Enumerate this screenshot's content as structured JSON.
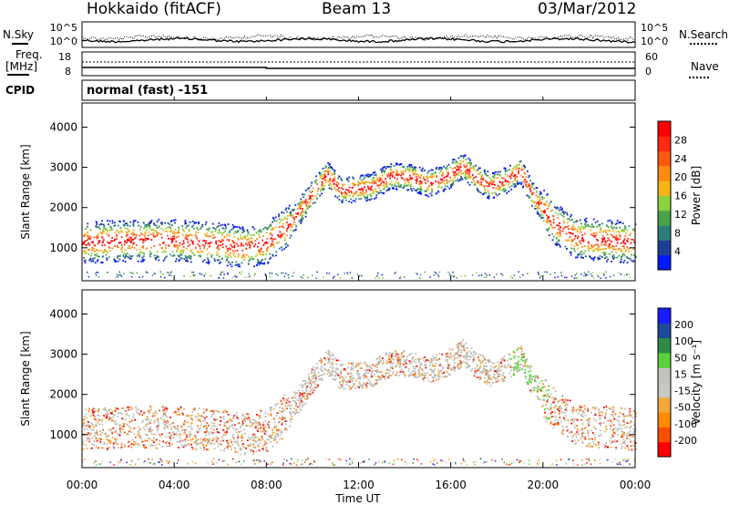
{
  "header": {
    "title_left": "Hokkaido (fitACF)",
    "title_center": "Beam 13",
    "title_right": "03/Mar/2012"
  },
  "panels": {
    "nsky": {
      "left_label": "N.Sky",
      "right_label": "N.Search",
      "left_ticks": [
        "10^5",
        "10^0"
      ],
      "right_ticks": [
        "10^5",
        "10^0"
      ]
    },
    "freq": {
      "left_label_1": "Freq.",
      "left_label_2": "[MHz]",
      "right_label": "Nave",
      "left_ticks": [
        "18",
        "8"
      ],
      "right_ticks": [
        "60",
        "0"
      ]
    },
    "cpid": {
      "label": "CPID",
      "value": "normal (fast) -151"
    }
  },
  "colors": {
    "power": [
      "#0019ff",
      "#1f3e96",
      "#2f7d7b",
      "#4aa24a",
      "#8bd33e",
      "#f8b316",
      "#ff8c10",
      "#ff5a10",
      "#ff2a10",
      "#ff0000"
    ],
    "velocity": [
      "#ff0000",
      "#ff4d00",
      "#ff8a00",
      "#f2a93a",
      "#c8c8c4",
      "#c4c4bc",
      "#5ad13a",
      "#2f8a4a",
      "#1e4a9a",
      "#1a1aff"
    ],
    "ground_scatter": "#bdbdb8"
  },
  "chart_data": [
    {
      "type": "heatmap",
      "name": "power",
      "ylabel": "Slant Range [km]",
      "ylim": [
        180,
        4600
      ],
      "yticks": [
        1000,
        2000,
        3000,
        4000
      ],
      "xlim": [
        0,
        24
      ],
      "colorbar_label": "Power [dB]",
      "colorbar_ticks": [
        "4",
        "8",
        "12",
        "16",
        "20",
        "24",
        "28"
      ],
      "colorbar_range": [
        0,
        32
      ],
      "ionospheric_band": [
        {
          "t": 0,
          "r": 1150
        },
        {
          "t": 2,
          "r": 1200
        },
        {
          "t": 4,
          "r": 1200
        },
        {
          "t": 6,
          "r": 1120
        },
        {
          "t": 7,
          "r": 1020
        },
        {
          "t": 8,
          "r": 1130
        },
        {
          "t": 9,
          "r": 1600
        },
        {
          "t": 10,
          "r": 2380
        },
        {
          "t": 10.6,
          "r": 2850
        },
        {
          "t": 11.2,
          "r": 2450
        },
        {
          "t": 12.5,
          "r": 2520
        },
        {
          "t": 13.4,
          "r": 2800
        },
        {
          "t": 14.2,
          "r": 2780
        },
        {
          "t": 15,
          "r": 2620
        },
        {
          "t": 15.8,
          "r": 2780
        },
        {
          "t": 16.5,
          "r": 3050
        },
        {
          "t": 17.2,
          "r": 2700
        },
        {
          "t": 17.7,
          "r": 2550
        },
        {
          "t": 18.4,
          "r": 2700
        },
        {
          "t": 19,
          "r": 2950
        },
        {
          "t": 19.5,
          "r": 2350
        },
        {
          "t": 20.5,
          "r": 1600
        },
        {
          "t": 21.5,
          "r": 1250
        },
        {
          "t": 24,
          "r": 1150
        }
      ]
    },
    {
      "type": "heatmap",
      "name": "velocity",
      "ylabel": "Slant Range [km]",
      "ylim": [
        180,
        4600
      ],
      "yticks": [
        1000,
        2000,
        3000,
        4000
      ],
      "xlim": [
        0,
        24
      ],
      "xlabel": "Time UT",
      "xticks": [
        "00:00",
        "04:00",
        "08:00",
        "12:00",
        "16:00",
        "20:00",
        "00:00"
      ],
      "colorbar_label": "Velocity [m s⁻¹]",
      "colorbar_ticks": [
        "-200",
        "-100",
        "-50",
        "-15",
        "15",
        "50",
        "100",
        "200"
      ]
    }
  ]
}
